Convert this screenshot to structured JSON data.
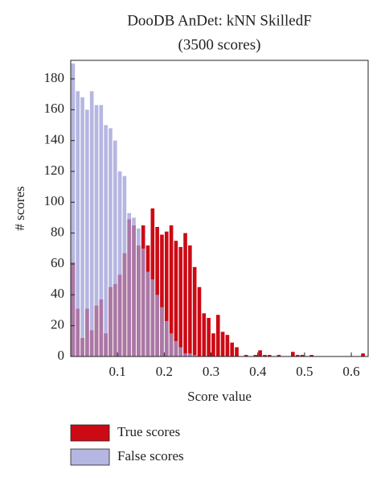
{
  "chart_data": {
    "type": "histogram",
    "title": "DooDB AnDet: kNN SkilledF",
    "subtitle": "(3500 scores)",
    "x_label": "Score value",
    "y_label": "# scores",
    "bins": [
      0,
      0.01,
      0.02,
      0.03,
      0.04,
      0.05,
      0.06,
      0.07,
      0.08,
      0.09,
      0.1,
      0.11,
      0.12,
      0.13,
      0.14,
      0.15,
      0.16,
      0.17,
      0.18,
      0.19,
      0.2,
      0.21,
      0.22,
      0.23,
      0.24,
      0.25,
      0.26,
      0.27,
      0.28,
      0.29,
      0.3,
      0.31,
      0.32,
      0.33,
      0.34,
      0.35,
      0.36,
      0.37,
      0.38,
      0.39,
      0.4,
      0.41,
      0.42,
      0.43,
      0.44,
      0.45,
      0.46,
      0.47,
      0.48,
      0.49,
      0.5,
      0.51,
      0.52,
      0.53,
      0.54,
      0.55,
      0.56,
      0.57,
      0.58,
      0.59,
      0.6,
      0.61,
      0.62,
      0.63
    ],
    "series": [
      {
        "name": "True scores",
        "color": "#cc0a14",
        "values": [
          61,
          31,
          12,
          31,
          17,
          33,
          37,
          15,
          45,
          47,
          53,
          67,
          89,
          85,
          72,
          85,
          72,
          96,
          84,
          79,
          81,
          85,
          75,
          71,
          80,
          72,
          58,
          45,
          28,
          25,
          15,
          27,
          16,
          14,
          9,
          6,
          0,
          1,
          0,
          1,
          4,
          1,
          1,
          0,
          1,
          0,
          0,
          3,
          1,
          1,
          0,
          1,
          0,
          0,
          0,
          0,
          0,
          0,
          0,
          0,
          0,
          0,
          2
        ]
      },
      {
        "name": "False scores",
        "color": "#9d9dd8",
        "values": [
          190,
          172,
          168,
          160,
          172,
          163,
          163,
          150,
          148,
          140,
          120,
          117,
          93,
          90,
          83,
          70,
          55,
          50,
          40,
          32,
          23,
          15,
          10,
          6,
          2,
          2,
          1,
          0,
          0,
          0,
          0,
          0,
          0,
          0,
          0,
          0,
          0,
          0,
          0,
          0,
          0,
          0,
          0,
          0,
          0,
          0,
          0,
          0,
          0,
          0,
          0,
          0,
          0,
          0,
          0,
          0,
          0,
          0,
          0,
          0,
          0,
          0,
          0
        ]
      }
    ],
    "xlim": [
      0,
      0.636
    ],
    "ylim": [
      0,
      192
    ],
    "xticks": [
      0.1,
      0.2,
      0.3,
      0.4,
      0.5,
      0.6
    ],
    "yticks": [
      0,
      20,
      40,
      60,
      80,
      100,
      120,
      140,
      160,
      180
    ]
  }
}
